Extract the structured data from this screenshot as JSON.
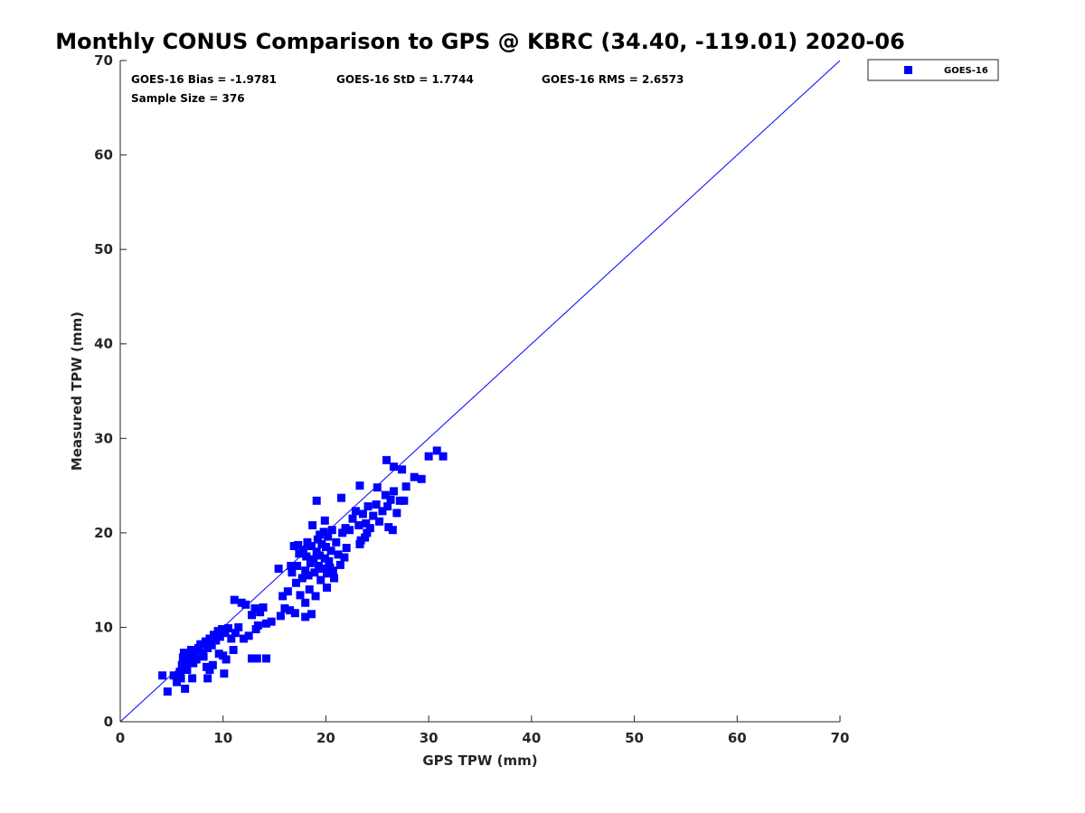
{
  "chart_data": {
    "type": "scatter",
    "title": "Monthly CONUS Comparison to GPS @ KBRC (34.40, -119.01) 2020-06",
    "xlabel": "GPS TPW (mm)",
    "ylabel": "Measured TPW (mm)",
    "xlim": [
      0,
      70
    ],
    "ylim": [
      0,
      70
    ],
    "xticks": [
      0,
      10,
      20,
      30,
      40,
      50,
      60,
      70
    ],
    "yticks": [
      0,
      10,
      20,
      30,
      40,
      50,
      60,
      70
    ],
    "grid": false,
    "legend_position": "outside-top-right",
    "reference_line": {
      "name": "1:1 line",
      "from": [
        0,
        0
      ],
      "to": [
        70,
        70
      ],
      "color": "#0000ff"
    },
    "stats": {
      "bias": "GOES-16 Bias = -1.9781",
      "std": "GOES-16 StD = 1.7744",
      "rms": "GOES-16 RMS = 2.6573",
      "sample": "Sample Size = 376"
    },
    "series": [
      {
        "name": "GOES-16",
        "color": "#0000ff",
        "marker": "square",
        "points": [
          [
            4.6,
            3.2
          ],
          [
            4.1,
            4.9
          ],
          [
            6.3,
            3.5
          ],
          [
            7.0,
            4.6
          ],
          [
            8.5,
            4.6
          ],
          [
            10.1,
            5.1
          ],
          [
            14.2,
            6.7
          ],
          [
            12.8,
            6.7
          ],
          [
            13.3,
            6.7
          ],
          [
            10.3,
            6.6
          ],
          [
            8.7,
            5.5
          ],
          [
            11.1,
            12.9
          ],
          [
            14.7,
            10.6
          ],
          [
            19.1,
            23.4
          ],
          [
            21.5,
            23.7
          ],
          [
            23.3,
            25.0
          ],
          [
            25.9,
            27.7
          ],
          [
            26.6,
            27.0
          ],
          [
            27.4,
            26.7
          ],
          [
            30.0,
            28.1
          ],
          [
            30.8,
            28.7
          ],
          [
            31.4,
            28.1
          ],
          [
            28.6,
            25.9
          ],
          [
            29.3,
            25.7
          ],
          [
            27.8,
            24.9
          ],
          [
            26.5,
            20.3
          ],
          [
            26.1,
            20.6
          ],
          [
            23.3,
            18.8
          ],
          [
            23.8,
            19.5
          ],
          [
            18.6,
            11.4
          ],
          [
            18.0,
            11.1
          ],
          [
            15.6,
            11.2
          ],
          [
            15.4,
            16.2
          ],
          [
            5.2,
            4.9
          ],
          [
            5.5,
            4.2
          ],
          [
            5.8,
            5.3
          ],
          [
            6.0,
            6.0
          ],
          [
            6.1,
            6.8
          ],
          [
            6.2,
            7.3
          ],
          [
            6.4,
            6.5
          ],
          [
            6.5,
            5.5
          ],
          [
            6.7,
            7.0
          ],
          [
            6.9,
            7.6
          ],
          [
            7.0,
            6.8
          ],
          [
            7.2,
            7.3
          ],
          [
            7.4,
            6.6
          ],
          [
            7.6,
            7.8
          ],
          [
            7.8,
            8.2
          ],
          [
            8.0,
            7.3
          ],
          [
            8.1,
            6.9
          ],
          [
            8.3,
            8.5
          ],
          [
            8.5,
            7.8
          ],
          [
            8.7,
            8.8
          ],
          [
            8.9,
            8.1
          ],
          [
            9.1,
            9.2
          ],
          [
            9.3,
            8.6
          ],
          [
            9.5,
            9.6
          ],
          [
            9.7,
            9.0
          ],
          [
            9.9,
            9.8
          ],
          [
            10.2,
            9.4
          ],
          [
            10.5,
            9.9
          ],
          [
            10.8,
            8.8
          ],
          [
            11.2,
            9.4
          ],
          [
            11.5,
            10.0
          ],
          [
            11.8,
            12.6
          ],
          [
            12.2,
            12.4
          ],
          [
            12.5,
            9.1
          ],
          [
            12.8,
            11.3
          ],
          [
            13.1,
            12.0
          ],
          [
            13.4,
            10.2
          ],
          [
            13.6,
            11.6
          ],
          [
            13.9,
            12.1
          ],
          [
            14.2,
            10.4
          ],
          [
            9.0,
            6.0
          ],
          [
            9.6,
            7.2
          ],
          [
            8.4,
            5.8
          ],
          [
            7.1,
            6.2
          ],
          [
            5.9,
            4.6
          ],
          [
            6.6,
            6.3
          ],
          [
            10.0,
            7.0
          ],
          [
            11.0,
            7.6
          ],
          [
            12.0,
            8.8
          ],
          [
            13.2,
            9.8
          ],
          [
            15.8,
            13.3
          ],
          [
            16.0,
            12.0
          ],
          [
            16.3,
            13.8
          ],
          [
            16.5,
            11.8
          ],
          [
            16.7,
            15.8
          ],
          [
            16.9,
            18.6
          ],
          [
            17.1,
            14.7
          ],
          [
            17.2,
            16.5
          ],
          [
            17.4,
            17.8
          ],
          [
            17.5,
            13.4
          ],
          [
            17.7,
            15.2
          ],
          [
            17.8,
            18.2
          ],
          [
            18.0,
            16.0
          ],
          [
            18.1,
            17.5
          ],
          [
            18.2,
            19.0
          ],
          [
            18.3,
            15.5
          ],
          [
            18.4,
            14.0
          ],
          [
            18.5,
            16.8
          ],
          [
            18.6,
            18.6
          ],
          [
            18.7,
            20.8
          ],
          [
            18.8,
            17.2
          ],
          [
            18.9,
            15.8
          ],
          [
            19.0,
            13.3
          ],
          [
            19.1,
            18.0
          ],
          [
            19.2,
            19.3
          ],
          [
            19.3,
            16.5
          ],
          [
            19.4,
            17.6
          ],
          [
            19.5,
            15.0
          ],
          [
            19.6,
            18.8
          ],
          [
            19.7,
            16.2
          ],
          [
            19.8,
            20.1
          ],
          [
            19.9,
            17.3
          ],
          [
            20.0,
            18.5
          ],
          [
            20.1,
            15.7
          ],
          [
            20.2,
            19.6
          ],
          [
            20.3,
            17.0
          ],
          [
            20.4,
            16.3
          ],
          [
            20.5,
            18.1
          ],
          [
            20.6,
            20.3
          ],
          [
            20.8,
            15.2
          ],
          [
            21.0,
            19.0
          ],
          [
            21.2,
            17.7
          ],
          [
            21.4,
            16.6
          ],
          [
            21.6,
            20.0
          ],
          [
            21.8,
            17.4
          ],
          [
            22.0,
            18.4
          ],
          [
            19.9,
            21.3
          ],
          [
            20.1,
            14.2
          ],
          [
            18.0,
            12.6
          ],
          [
            17.0,
            11.5
          ],
          [
            16.6,
            16.5
          ],
          [
            17.3,
            18.7
          ],
          [
            21.9,
            20.5
          ],
          [
            20.7,
            16.0
          ],
          [
            19.4,
            19.8
          ],
          [
            22.3,
            20.3
          ],
          [
            22.6,
            21.5
          ],
          [
            22.9,
            22.3
          ],
          [
            23.2,
            20.8
          ],
          [
            23.4,
            19.2
          ],
          [
            23.6,
            22.0
          ],
          [
            23.9,
            21.0
          ],
          [
            24.1,
            22.8
          ],
          [
            24.3,
            20.5
          ],
          [
            24.6,
            21.8
          ],
          [
            24.9,
            23.0
          ],
          [
            25.2,
            21.2
          ],
          [
            25.5,
            22.3
          ],
          [
            25.8,
            24.0
          ],
          [
            26.0,
            22.8
          ],
          [
            26.3,
            23.5
          ],
          [
            26.6,
            24.4
          ],
          [
            26.9,
            22.1
          ],
          [
            27.2,
            23.4
          ],
          [
            27.6,
            23.4
          ],
          [
            25.0,
            24.8
          ],
          [
            24.0,
            20.0
          ]
        ]
      }
    ]
  }
}
